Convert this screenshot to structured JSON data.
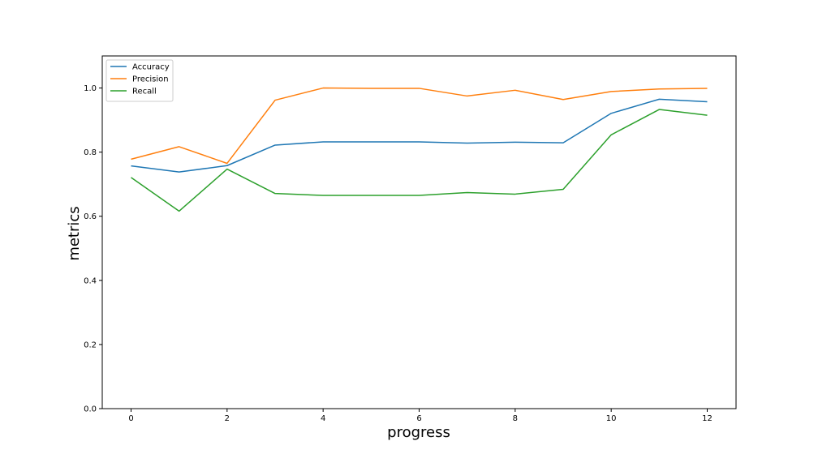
{
  "chart_data": {
    "type": "line",
    "title": "",
    "xlabel": "progress",
    "ylabel": "metrics",
    "x": [
      0,
      1,
      2,
      3,
      4,
      5,
      6,
      7,
      8,
      9,
      10,
      11,
      12
    ],
    "xlim": [
      -0.6,
      12.6
    ],
    "ylim": [
      0.0,
      1.1
    ],
    "xticks": [
      0,
      2,
      4,
      6,
      8,
      10,
      12
    ],
    "yticks": [
      0.0,
      0.2,
      0.4,
      0.6,
      0.8,
      1.0
    ],
    "xtick_labels": [
      "0",
      "2",
      "4",
      "6",
      "8",
      "10",
      "12"
    ],
    "ytick_labels": [
      "0.0",
      "0.2",
      "0.4",
      "0.6",
      "0.8",
      "1.0"
    ],
    "grid": false,
    "legend_position": "top-left",
    "series": [
      {
        "name": "Accuracy",
        "color": "#1f77b4",
        "values": [
          0.757,
          0.738,
          0.758,
          0.822,
          0.832,
          0.832,
          0.832,
          0.828,
          0.831,
          0.829,
          0.921,
          0.965,
          0.957
        ]
      },
      {
        "name": "Precision",
        "color": "#ff7f0e",
        "values": [
          0.778,
          0.817,
          0.765,
          0.962,
          1.0,
          0.999,
          0.999,
          0.975,
          0.993,
          0.964,
          0.989,
          0.997,
          0.999
        ]
      },
      {
        "name": "Recall",
        "color": "#2ca02c",
        "values": [
          0.721,
          0.616,
          0.747,
          0.671,
          0.665,
          0.665,
          0.665,
          0.674,
          0.669,
          0.684,
          0.854,
          0.933,
          0.915
        ]
      }
    ]
  }
}
